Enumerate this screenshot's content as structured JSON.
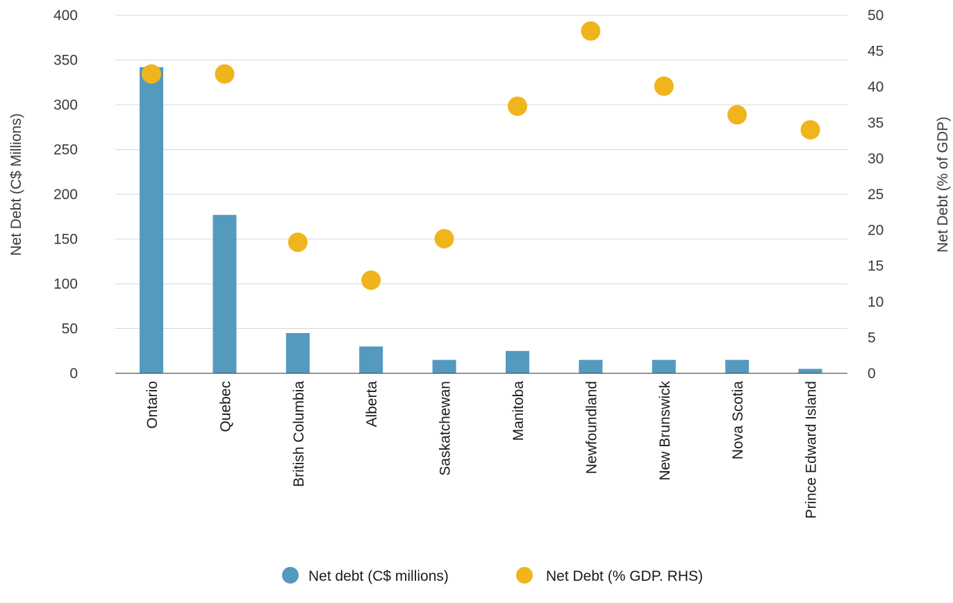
{
  "chart_data": {
    "type": "bar",
    "categories": [
      "Ontario",
      "Quebec",
      "British Columbia",
      "Alberta",
      "Saskatchewan",
      "Manitoba",
      "Newfoundland",
      "New Brunswick",
      "Nova Scotia",
      "Prince Edward Island"
    ],
    "series": [
      {
        "name": "Net debt (C$ millions)",
        "type": "bar",
        "axis": "left",
        "color": "#5499be",
        "values": [
          342,
          177,
          45,
          30,
          15,
          25,
          15,
          15,
          15,
          5
        ]
      },
      {
        "name": "Net Debt (% GDP. RHS)",
        "type": "scatter",
        "axis": "right",
        "color": "#f0b41c",
        "values": [
          41.8,
          41.8,
          18.3,
          13.0,
          18.8,
          37.3,
          47.8,
          40.1,
          36.1,
          34.0
        ]
      }
    ],
    "ylabel": "Net Debt (C$ Millions)",
    "y2label": "Net Debt (% of GDP)",
    "ylim": [
      0,
      400
    ],
    "y2lim": [
      0,
      50
    ],
    "yticks": [
      0,
      50,
      100,
      150,
      200,
      250,
      300,
      350,
      400
    ],
    "y2ticks": [
      0,
      5,
      10,
      15,
      20,
      25,
      30,
      35,
      40,
      45,
      50
    ],
    "grid": true,
    "legend_position": "bottom-center"
  }
}
